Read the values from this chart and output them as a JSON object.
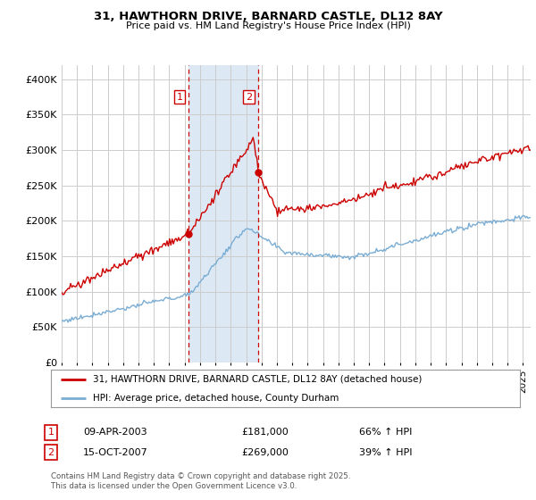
{
  "title1": "31, HAWTHORN DRIVE, BARNARD CASTLE, DL12 8AY",
  "title2": "Price paid vs. HM Land Registry's House Price Index (HPI)",
  "ylim": [
    0,
    420000
  ],
  "xlim_start": 1995.0,
  "xlim_end": 2025.5,
  "purchase1_date": 2003.27,
  "purchase1_price": 181000,
  "purchase2_date": 2007.79,
  "purchase2_price": 269000,
  "legend_line1": "31, HAWTHORN DRIVE, BARNARD CASTLE, DL12 8AY (detached house)",
  "legend_line2": "HPI: Average price, detached house, County Durham",
  "table_row1": [
    "1",
    "09-APR-2003",
    "£181,000",
    "66% ↑ HPI"
  ],
  "table_row2": [
    "2",
    "15-OCT-2007",
    "£269,000",
    "39% ↑ HPI"
  ],
  "footnote": "Contains HM Land Registry data © Crown copyright and database right 2025.\nThis data is licensed under the Open Government Licence v3.0.",
  "red_color": "#cc0000",
  "blue_color": "#7aadd4",
  "shade_color": "#dce9f5",
  "background_color": "#ffffff",
  "grid_color": "#cccccc"
}
